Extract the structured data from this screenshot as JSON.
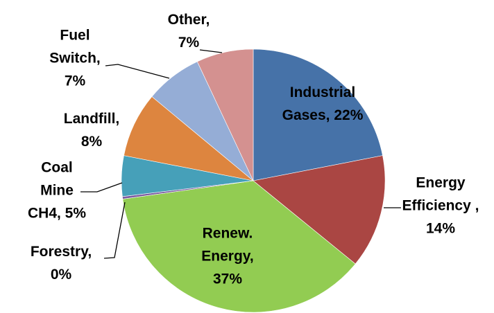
{
  "chart_data": {
    "type": "pie",
    "labels": [
      "Industrial Gases, 22%",
      "Energy Efficiency , 14%",
      "Renew. Energy, 37%",
      "Forestry, 0%",
      "Coal Mine CH4, 5%",
      "Landfill, 8%",
      "Fuel Switch, 7%",
      "Other, 7%"
    ],
    "values": [
      22,
      14,
      37,
      0.3,
      5,
      8,
      7,
      7
    ],
    "colors": [
      "#4672a8",
      "#aa4643",
      "#92cc52",
      "#7b5ba1",
      "#46a0b9",
      "#dd853f",
      "#95add6",
      "#d49190"
    ]
  }
}
